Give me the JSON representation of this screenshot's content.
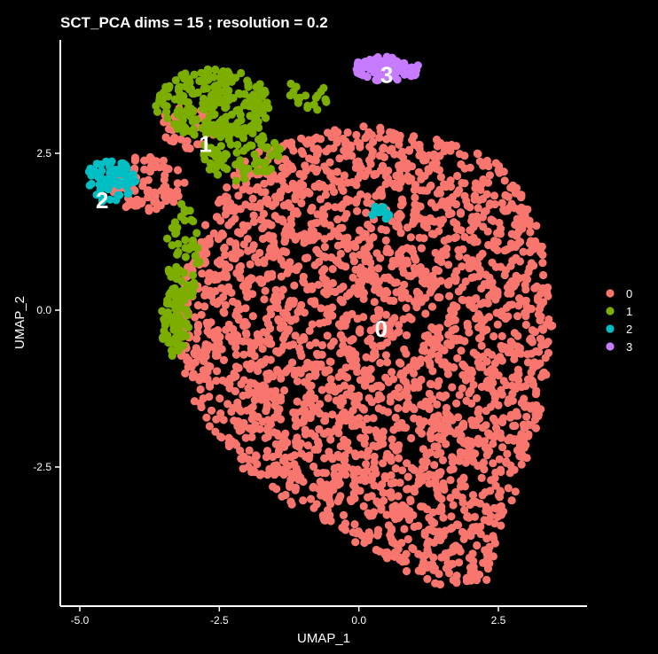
{
  "chart_data": {
    "type": "scatter",
    "title": "SCT_PCA dims =  15 ; resolution = 0.2",
    "xlabel": "UMAP_1",
    "ylabel": "UMAP_2",
    "xlim": [
      -5.25,
      4.0
    ],
    "ylim": [
      -5.3,
      4.4
    ],
    "x_ticks": [
      -5.0,
      -2.5,
      0.0,
      2.5
    ],
    "x_tick_labels": [
      "-5.0",
      "-2.5",
      "0.0",
      "2.5"
    ],
    "y_ticks": [
      -2.5,
      0.0,
      2.5
    ],
    "y_tick_labels": [
      "-2.5",
      "0.0",
      "2.5"
    ],
    "grid": false,
    "background": "#000000",
    "legend_position": "right",
    "series": [
      {
        "name": "0",
        "color": "#F8766D",
        "label_position": [
          0.4,
          -0.3
        ],
        "regions": [
          {
            "shape": "polygon",
            "points": [
              [
                -1.6,
                2.6
              ],
              [
                0.0,
                3.0
              ],
              [
                1.5,
                2.7
              ],
              [
                2.5,
                2.4
              ],
              [
                3.2,
                1.5
              ],
              [
                3.5,
                0.0
              ],
              [
                3.3,
                -1.5
              ],
              [
                2.8,
                -3.0
              ],
              [
                2.3,
                -4.3
              ],
              [
                1.5,
                -4.5
              ],
              [
                0.4,
                -4.0
              ],
              [
                -1.4,
                -3.0
              ],
              [
                -2.4,
                -2.3
              ],
              [
                -3.0,
                -1.4
              ],
              [
                -3.3,
                -0.4
              ],
              [
                -3.1,
                0.8
              ],
              [
                -2.6,
                1.6
              ],
              [
                -2.1,
                2.4
              ]
            ],
            "count": 2600
          },
          {
            "shape": "ellipse",
            "center": [
              -3.8,
              2.0
            ],
            "radius": [
              0.7,
              0.45
            ],
            "count": 90
          },
          {
            "shape": "ellipse",
            "center": [
              -3.0,
              2.9
            ],
            "radius": [
              0.6,
              0.35
            ],
            "count": 40
          }
        ]
      },
      {
        "name": "1",
        "color": "#7CAE00",
        "label_position": [
          -2.75,
          2.65
        ],
        "regions": [
          {
            "shape": "ellipse",
            "center": [
              -2.6,
              3.3
            ],
            "radius": [
              1.05,
              0.55
            ],
            "count": 220
          },
          {
            "shape": "ellipse",
            "center": [
              -2.1,
              2.5
            ],
            "radius": [
              0.7,
              0.45
            ],
            "count": 90
          },
          {
            "shape": "ellipse",
            "center": [
              -3.15,
              0.9
            ],
            "radius": [
              0.3,
              0.8
            ],
            "count": 60
          },
          {
            "shape": "ellipse",
            "center": [
              -3.3,
              -0.2
            ],
            "radius": [
              0.25,
              0.55
            ],
            "count": 70
          },
          {
            "shape": "ellipse",
            "center": [
              -1.0,
              3.4
            ],
            "radius": [
              0.5,
              0.25
            ],
            "count": 18
          }
        ]
      },
      {
        "name": "2",
        "color": "#00BFC4",
        "label_position": [
          -4.6,
          1.75
        ],
        "regions": [
          {
            "shape": "ellipse",
            "center": [
              -4.45,
              2.05
            ],
            "radius": [
              0.45,
              0.35
            ],
            "count": 75
          },
          {
            "shape": "ellipse",
            "center": [
              0.4,
              1.55
            ],
            "radius": [
              0.2,
              0.12
            ],
            "count": 12
          }
        ]
      },
      {
        "name": "3",
        "color": "#C77CFF",
        "label_position": [
          0.5,
          3.75
        ],
        "regions": [
          {
            "shape": "ellipse",
            "center": [
              0.5,
              3.85
            ],
            "radius": [
              0.6,
              0.2
            ],
            "count": 80
          }
        ]
      }
    ]
  }
}
